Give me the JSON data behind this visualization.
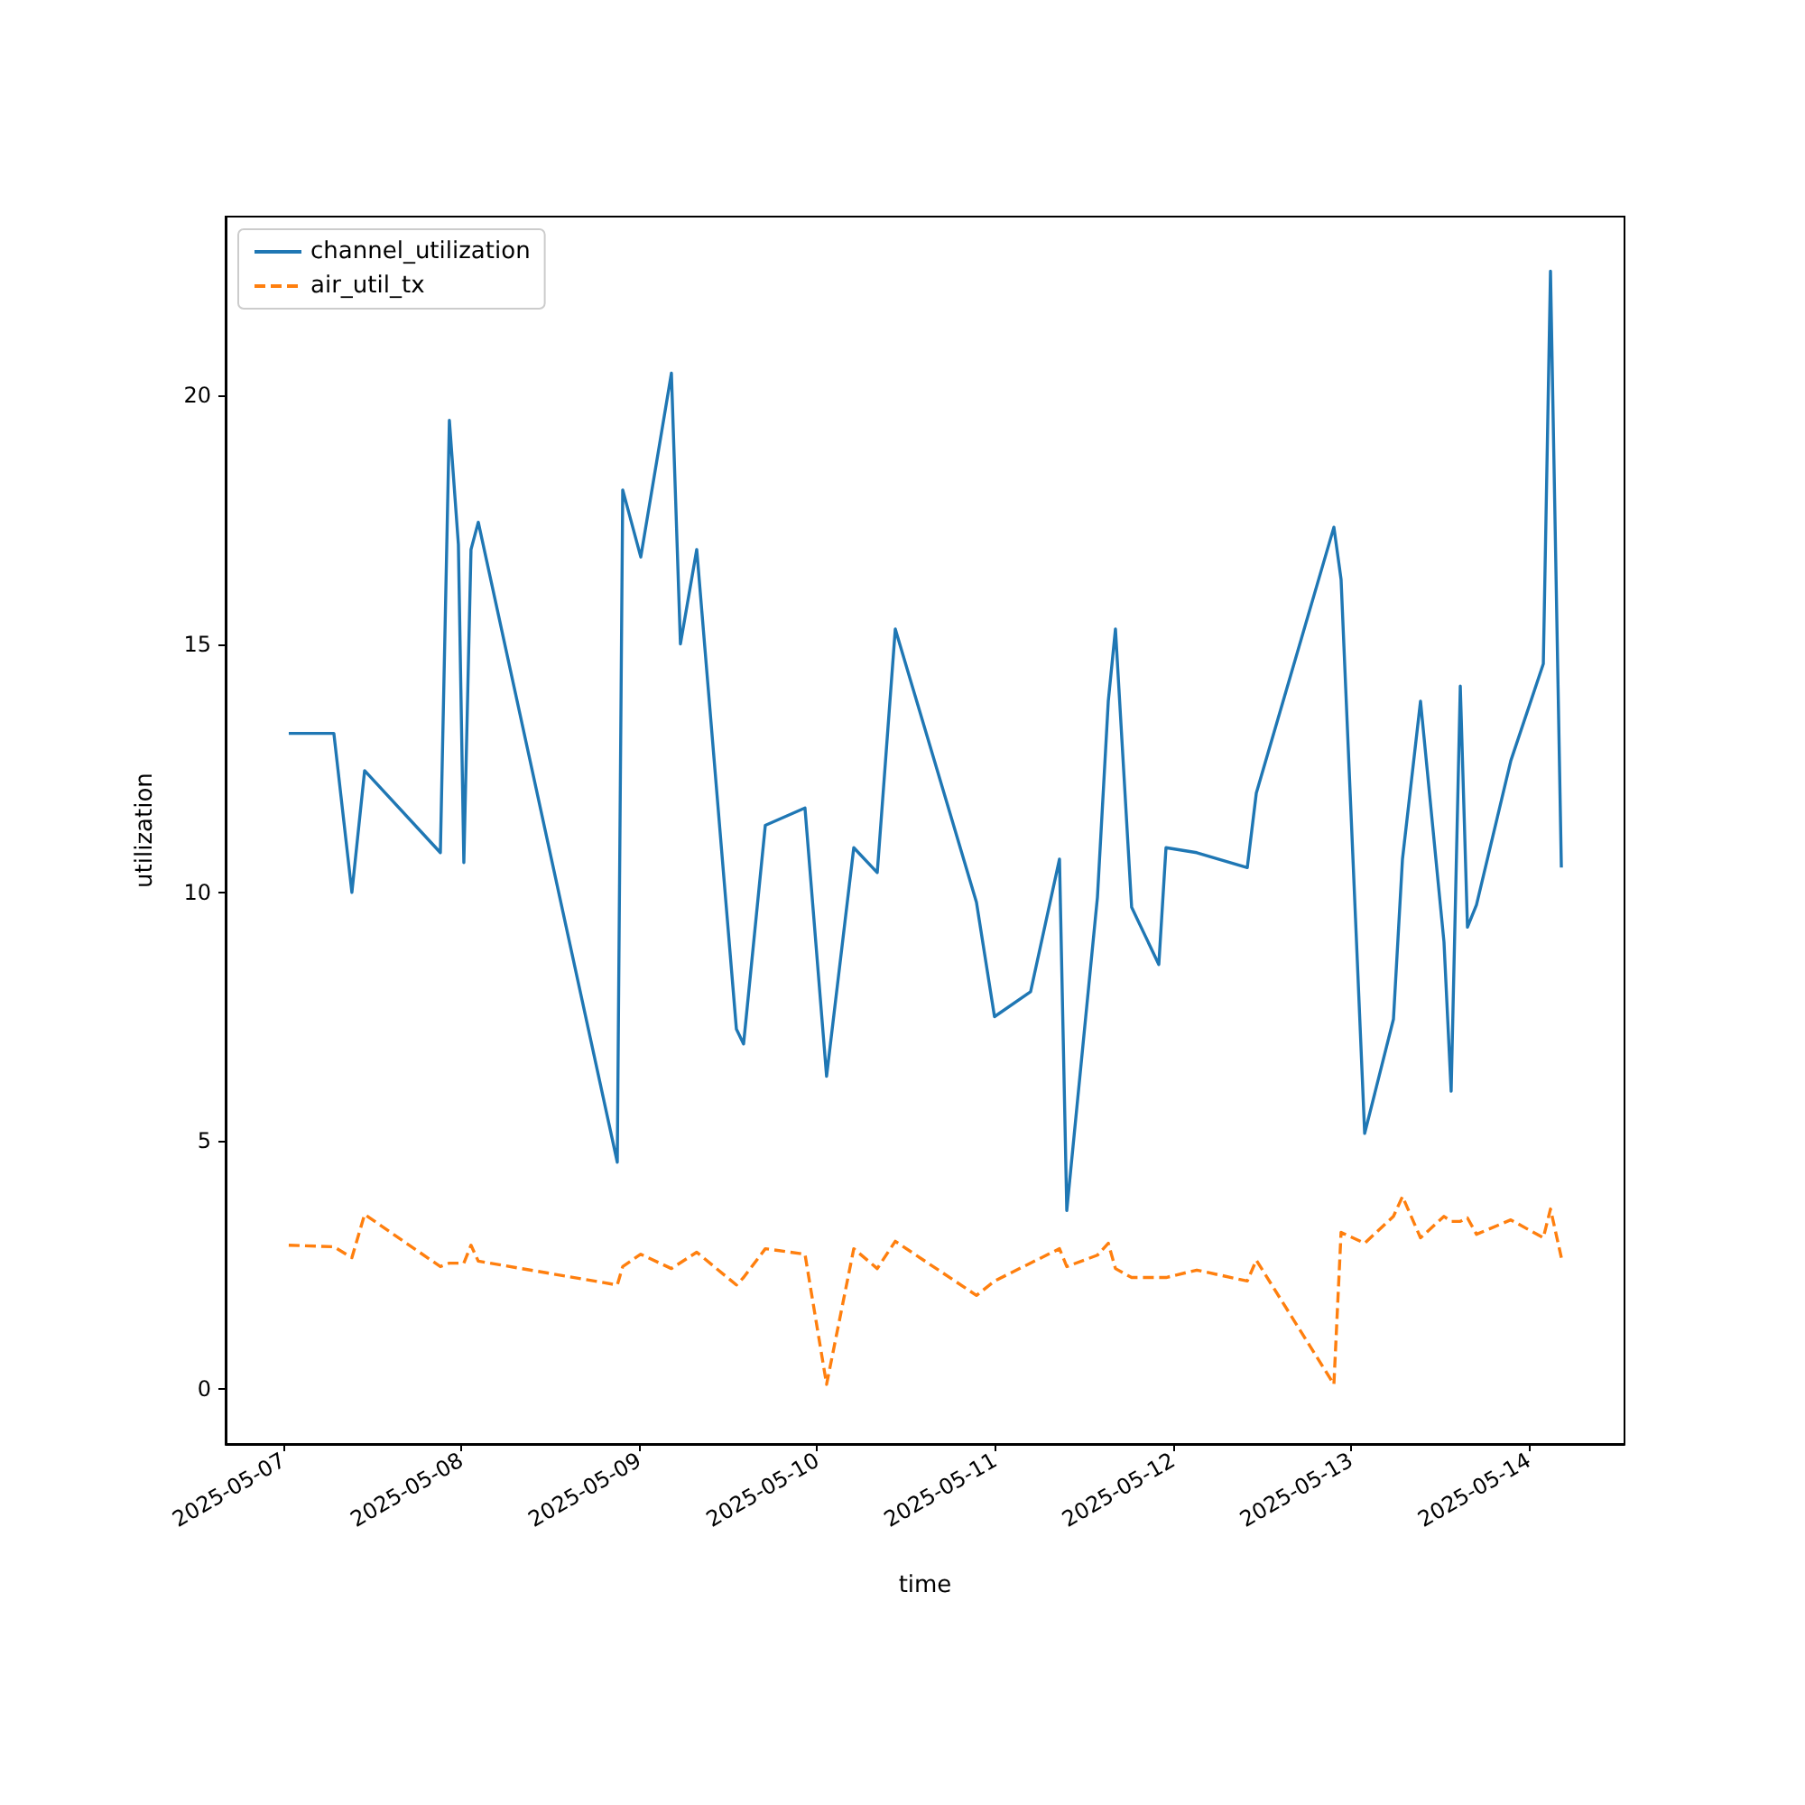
{
  "chart_data": {
    "type": "line",
    "xlabel": "time",
    "ylabel": "utilization",
    "xlim": [
      "2025-05-06T16:13",
      "2025-05-14T12:55"
    ],
    "xticks": [
      "2025-05-07",
      "2025-05-08",
      "2025-05-09",
      "2025-05-10",
      "2025-05-11",
      "2025-05-12",
      "2025-05-13",
      "2025-05-14"
    ],
    "ylim": [
      -1.1,
      23.6
    ],
    "yticks": [
      0,
      5,
      10,
      15,
      20
    ],
    "grid": false,
    "legend": "top left",
    "marker": "none",
    "series": [
      {
        "name": "channel_utilization",
        "color": "#1f77b4",
        "line_style": "solid",
        "x": [
          "2025-05-07T00:44",
          "2025-05-07T06:49",
          "2025-05-07T09:15",
          "2025-05-07T10:58",
          "2025-05-07T21:11",
          "2025-05-07T22:24",
          "2025-05-07T23:37",
          "2025-05-08T00:21",
          "2025-05-08T01:19",
          "2025-05-08T02:18",
          "2025-05-08T21:03",
          "2025-05-08T21:47",
          "2025-05-09T00:13",
          "2025-05-09T04:21",
          "2025-05-09T05:34",
          "2025-05-09T07:46",
          "2025-05-09T13:07",
          "2025-05-09T14:05",
          "2025-05-09T17:01",
          "2025-05-09T22:22",
          "2025-05-10T01:17",
          "2025-05-10T04:57",
          "2025-05-10T08:07",
          "2025-05-10T10:33",
          "2025-05-10T21:30",
          "2025-05-10T23:56",
          "2025-05-11T04:48",
          "2025-05-11T08:42",
          "2025-05-11T09:41",
          "2025-05-11T13:49",
          "2025-05-11T15:17",
          "2025-05-11T16:15",
          "2025-05-11T18:26",
          "2025-05-11T22:06",
          "2025-05-11T23:04",
          "2025-05-12T03:13",
          "2025-05-12T10:02",
          "2025-05-12T11:15",
          "2025-05-12T21:43",
          "2025-05-12T22:41",
          "2025-05-13T01:52",
          "2025-05-13T05:45",
          "2025-05-13T06:58",
          "2025-05-13T09:24",
          "2025-05-13T12:34",
          "2025-05-13T13:32",
          "2025-05-13T14:46",
          "2025-05-13T15:44",
          "2025-05-13T16:57",
          "2025-05-13T21:35",
          "2025-05-14T01:58",
          "2025-05-14T02:56",
          "2025-05-14T04:24"
        ],
        "values": [
          13.2,
          13.2,
          10.0,
          12.45,
          10.8,
          19.5,
          17.0,
          10.6,
          16.9,
          17.45,
          4.57,
          18.1,
          16.75,
          20.45,
          15.0,
          16.9,
          7.25,
          6.95,
          11.35,
          11.7,
          6.3,
          10.9,
          10.4,
          15.3,
          9.8,
          7.5,
          8.0,
          10.67,
          3.6,
          9.9,
          13.85,
          15.3,
          9.7,
          8.55,
          10.9,
          10.8,
          10.5,
          12.0,
          17.35,
          16.3,
          5.15,
          7.45,
          10.67,
          13.85,
          9.0,
          6.0,
          14.15,
          9.3,
          9.75,
          12.65,
          14.6,
          22.5,
          10.5
        ]
      },
      {
        "name": "air_util_tx",
        "color": "#ff7f0e",
        "line_style": "dashed",
        "x": [
          "2025-05-07T00:44",
          "2025-05-07T06:49",
          "2025-05-07T09:15",
          "2025-05-07T10:58",
          "2025-05-07T21:11",
          "2025-05-07T22:24",
          "2025-05-08T00:21",
          "2025-05-08T01:19",
          "2025-05-08T02:18",
          "2025-05-08T21:03",
          "2025-05-08T21:47",
          "2025-05-09T00:13",
          "2025-05-09T04:21",
          "2025-05-09T07:46",
          "2025-05-09T13:07",
          "2025-05-09T14:05",
          "2025-05-09T17:01",
          "2025-05-09T22:22",
          "2025-05-10T01:17",
          "2025-05-10T04:57",
          "2025-05-10T08:07",
          "2025-05-10T10:33",
          "2025-05-10T21:30",
          "2025-05-10T23:56",
          "2025-05-11T08:42",
          "2025-05-11T09:41",
          "2025-05-11T13:49",
          "2025-05-11T15:17",
          "2025-05-11T16:15",
          "2025-05-11T18:26",
          "2025-05-11T23:04",
          "2025-05-12T03:13",
          "2025-05-12T10:02",
          "2025-05-12T11:15",
          "2025-05-12T21:43",
          "2025-05-12T22:41",
          "2025-05-13T01:52",
          "2025-05-13T05:45",
          "2025-05-13T06:58",
          "2025-05-13T09:24",
          "2025-05-13T12:34",
          "2025-05-13T13:32",
          "2025-05-13T14:46",
          "2025-05-13T15:44",
          "2025-05-13T16:57",
          "2025-05-13T21:35",
          "2025-05-14T01:58",
          "2025-05-14T02:56",
          "2025-05-14T04:24"
        ],
        "values": [
          2.9,
          2.87,
          2.65,
          3.52,
          2.47,
          2.54,
          2.54,
          2.9,
          2.58,
          2.1,
          2.47,
          2.72,
          2.43,
          2.76,
          2.1,
          2.25,
          2.83,
          2.72,
          0.1,
          2.83,
          2.43,
          2.98,
          1.89,
          2.18,
          2.83,
          2.47,
          2.7,
          2.94,
          2.43,
          2.25,
          2.25,
          2.4,
          2.18,
          2.6,
          0.1,
          3.16,
          2.94,
          3.48,
          3.88,
          3.05,
          3.48,
          3.38,
          3.38,
          3.45,
          3.12,
          3.41,
          3.05,
          3.63,
          2.65
        ]
      }
    ]
  }
}
